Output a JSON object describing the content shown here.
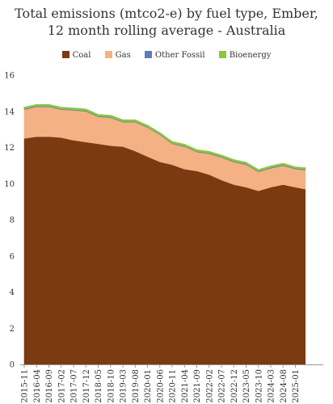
{
  "chart_data": {
    "type": "area",
    "title": [
      "Total emissions (mtco2-e) by fuel type, Ember,",
      "12 month rolling average - Australia"
    ],
    "xlabel": "",
    "ylabel": "",
    "ylim": [
      0,
      16
    ],
    "y_ticks": [
      0,
      2,
      4,
      6,
      8,
      10,
      12,
      14,
      16
    ],
    "x_tick_labels": [
      "2015-11",
      "2016-04",
      "2016-09",
      "2017-02",
      "2017-07",
      "2017-12",
      "2018-05",
      "2018-10",
      "2019-03",
      "2019-08",
      "2020-01",
      "2020-06",
      "2020-11",
      "2021-04",
      "2021-09",
      "2022-02",
      "2022-07",
      "2022-12",
      "2023-05",
      "2023-10",
      "2024-03",
      "2024-08",
      "2025-01"
    ],
    "grid": false,
    "legend_position": "top",
    "stacked": true,
    "series": [
      {
        "name": "Coal",
        "color": "#7b3a10",
        "x": [
          "2015-11",
          "2016-04",
          "2016-09",
          "2017-02",
          "2017-07",
          "2017-12",
          "2018-05",
          "2018-10",
          "2019-03",
          "2019-08",
          "2020-01",
          "2020-06",
          "2020-11",
          "2021-04",
          "2021-09",
          "2022-02",
          "2022-07",
          "2022-12",
          "2023-05",
          "2023-10",
          "2024-03",
          "2024-08",
          "2025-01",
          "2025-05"
        ],
        "values": [
          12.5,
          12.6,
          12.6,
          12.55,
          12.4,
          12.3,
          12.2,
          12.1,
          12.05,
          11.8,
          11.5,
          11.2,
          11.05,
          10.8,
          10.7,
          10.5,
          10.2,
          9.95,
          9.8,
          9.6,
          9.8,
          9.95,
          9.8,
          9.7
        ]
      },
      {
        "name": "Gas",
        "color": "#f4b183",
        "x": [
          "2015-11",
          "2016-04",
          "2016-09",
          "2017-02",
          "2017-07",
          "2017-12",
          "2018-05",
          "2018-10",
          "2019-03",
          "2019-08",
          "2020-01",
          "2020-06",
          "2020-11",
          "2021-04",
          "2021-09",
          "2022-02",
          "2022-07",
          "2022-12",
          "2023-05",
          "2023-10",
          "2024-03",
          "2024-08",
          "2025-01",
          "2025-05"
        ],
        "values": [
          1.6,
          1.65,
          1.65,
          1.55,
          1.65,
          1.7,
          1.5,
          1.55,
          1.35,
          1.6,
          1.6,
          1.5,
          1.15,
          1.25,
          1.05,
          1.15,
          1.25,
          1.25,
          1.25,
          1.05,
          1.05,
          1.05,
          1.0,
          1.05
        ]
      },
      {
        "name": "Other Fossil",
        "color": "#5b7fb5",
        "x": [
          "2015-11",
          "2016-04",
          "2016-09",
          "2017-02",
          "2017-07",
          "2017-12",
          "2018-05",
          "2018-10",
          "2019-03",
          "2019-08",
          "2020-01",
          "2020-06",
          "2020-11",
          "2021-04",
          "2021-09",
          "2022-02",
          "2022-07",
          "2022-12",
          "2023-05",
          "2023-10",
          "2024-03",
          "2024-08",
          "2025-01",
          "2025-05"
        ],
        "values": [
          0.05,
          0.05,
          0.05,
          0.05,
          0.05,
          0.05,
          0.05,
          0.05,
          0.05,
          0.05,
          0.05,
          0.05,
          0.05,
          0.05,
          0.05,
          0.05,
          0.05,
          0.05,
          0.05,
          0.05,
          0.05,
          0.05,
          0.05,
          0.05
        ]
      },
      {
        "name": "Bioenergy",
        "color": "#8dc63f",
        "x": [
          "2015-11",
          "2016-04",
          "2016-09",
          "2017-02",
          "2017-07",
          "2017-12",
          "2018-05",
          "2018-10",
          "2019-03",
          "2019-08",
          "2020-01",
          "2020-06",
          "2020-11",
          "2021-04",
          "2021-09",
          "2022-02",
          "2022-07",
          "2022-12",
          "2023-05",
          "2023-10",
          "2024-03",
          "2024-08",
          "2025-01",
          "2025-05"
        ],
        "values": [
          0.07,
          0.07,
          0.07,
          0.07,
          0.07,
          0.07,
          0.07,
          0.07,
          0.07,
          0.07,
          0.07,
          0.07,
          0.07,
          0.07,
          0.07,
          0.07,
          0.07,
          0.07,
          0.07,
          0.07,
          0.07,
          0.07,
          0.07,
          0.07
        ]
      }
    ]
  }
}
